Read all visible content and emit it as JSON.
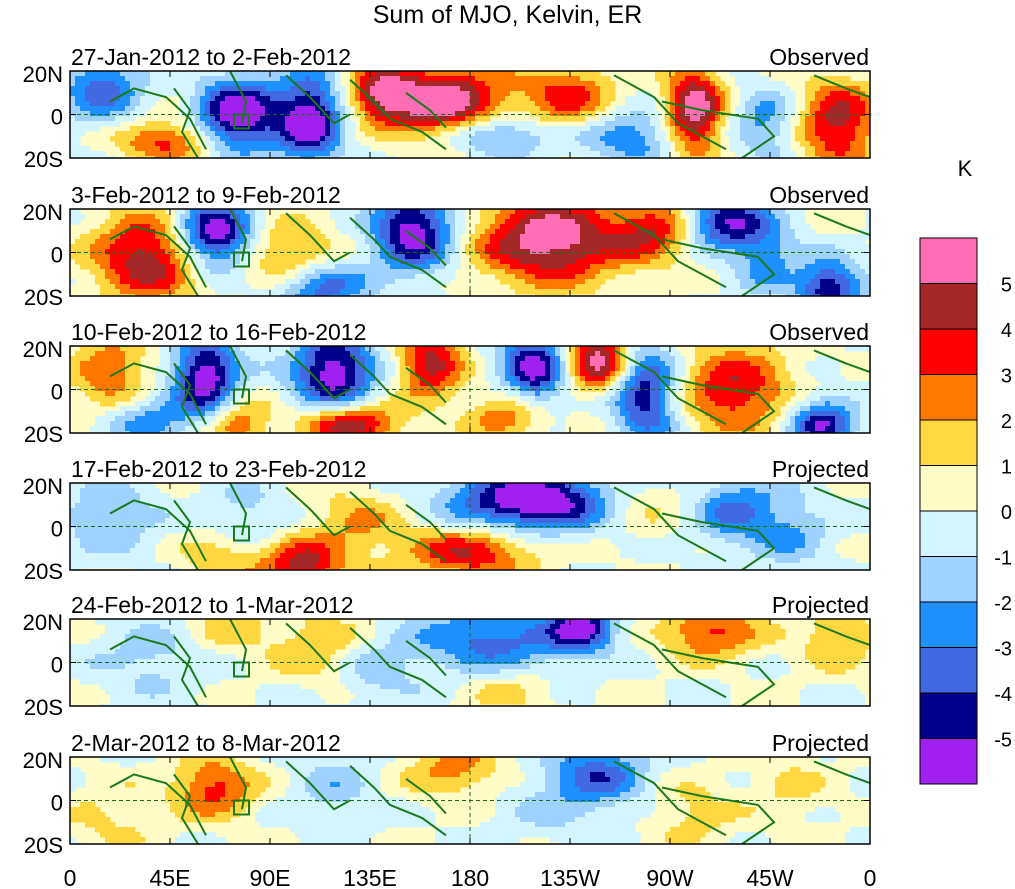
{
  "title": "Sum of MJO, Kelvin, ER",
  "colorbar": {
    "unit": "K",
    "colors": [
      "#a020f0",
      "#00008b",
      "#4169e1",
      "#1e90ff",
      "#a0d2ff",
      "#d2f5ff",
      "#fffcc8",
      "#ffd740",
      "#ff7700",
      "#ff0000",
      "#a52828",
      "#ff6eb4"
    ],
    "tick_labels": [
      "-5",
      "-4",
      "-3",
      "-2",
      "-1",
      "0",
      "1",
      "2",
      "3",
      "4",
      "5"
    ]
  },
  "panels": [
    {
      "date_range": "27-Jan-2012 to 2-Feb-2012",
      "status": "Observed"
    },
    {
      "date_range": "3-Feb-2012 to 9-Feb-2012",
      "status": "Observed"
    },
    {
      "date_range": "10-Feb-2012 to 16-Feb-2012",
      "status": "Observed"
    },
    {
      "date_range": "17-Feb-2012 to 23-Feb-2012",
      "status": "Projected"
    },
    {
      "date_range": "24-Feb-2012 to 1-Mar-2012",
      "status": "Projected"
    },
    {
      "date_range": "2-Mar-2012 to 8-Mar-2012",
      "status": "Projected"
    }
  ],
  "chart_data": {
    "type": "heatmap",
    "title": "Sum of MJO, Kelvin, ER",
    "x_tick_labels": [
      "0",
      "45E",
      "90E",
      "135E",
      "180",
      "135W",
      "90W",
      "45W",
      "0"
    ],
    "y_tick_labels": [
      "20N",
      "0",
      "20S"
    ],
    "legend_unit": "K",
    "legend_position": "right",
    "contour_levels": [
      -5,
      -4,
      -3,
      -2,
      -1,
      0,
      1,
      2,
      3,
      4,
      5
    ]
  }
}
